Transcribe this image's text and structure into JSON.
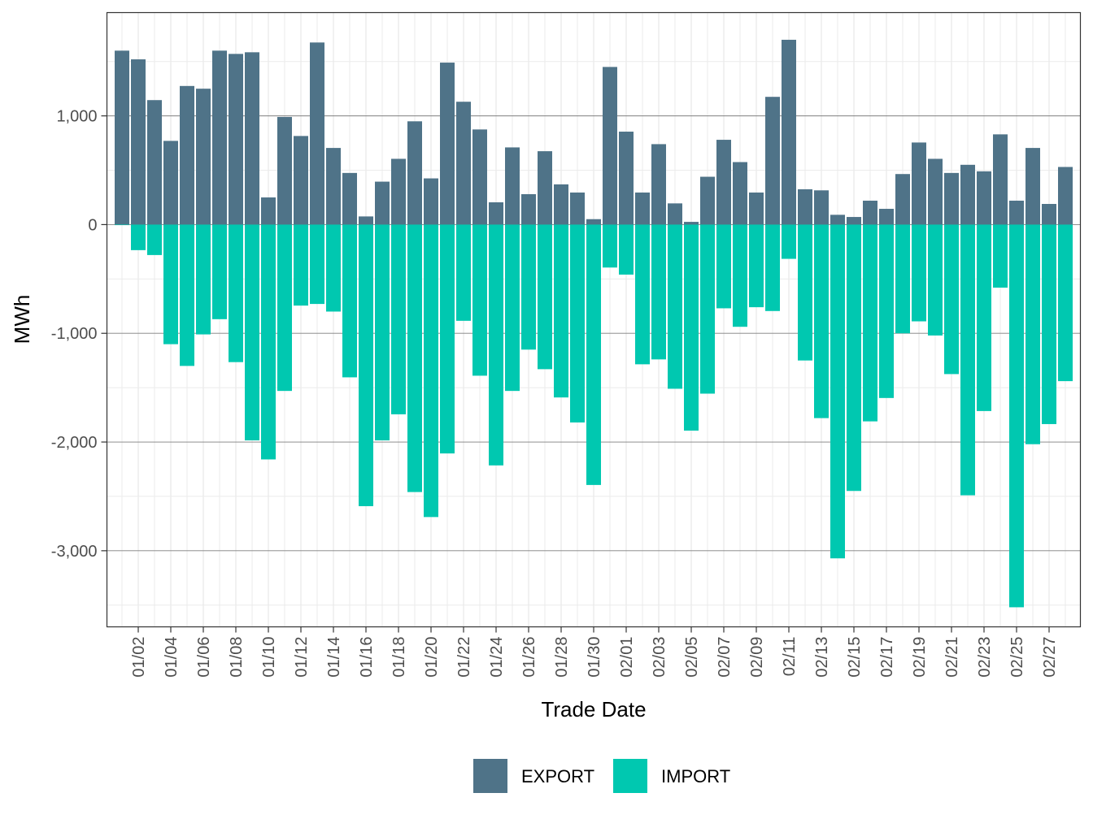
{
  "chart_data": {
    "type": "bar",
    "title": "",
    "xlabel": "Trade Date",
    "ylabel": "MWh",
    "ylim": [
      -3700,
      1950
    ],
    "y_ticks": [
      1000,
      0,
      -1000,
      -2000,
      -3000
    ],
    "y_tick_labels": [
      "1,000",
      "0",
      "-1,000",
      "-2,000",
      "-3,000"
    ],
    "x_tick_labels": [
      "01/02",
      "01/04",
      "01/06",
      "01/08",
      "01/10",
      "01/12",
      "01/14",
      "01/16",
      "01/18",
      "01/20",
      "01/22",
      "01/24",
      "01/26",
      "01/28",
      "01/30",
      "02/01",
      "02/03",
      "02/05",
      "02/07",
      "02/09",
      "02/11",
      "02/13",
      "02/15",
      "02/17",
      "02/19",
      "02/21",
      "02/23",
      "02/25",
      "02/27"
    ],
    "categories": [
      "01/01",
      "01/02",
      "01/03",
      "01/04",
      "01/05",
      "01/06",
      "01/07",
      "01/08",
      "01/09",
      "01/10",
      "01/11",
      "01/12",
      "01/13",
      "01/14",
      "01/15",
      "01/16",
      "01/17",
      "01/18",
      "01/19",
      "01/20",
      "01/21",
      "01/22",
      "01/23",
      "01/24",
      "01/25",
      "01/26",
      "01/27",
      "01/28",
      "01/29",
      "01/30",
      "01/31",
      "02/01",
      "02/02",
      "02/03",
      "02/04",
      "02/05",
      "02/06",
      "02/07",
      "02/08",
      "02/09",
      "02/10",
      "02/11",
      "02/12",
      "02/13",
      "02/14",
      "02/15",
      "02/16",
      "02/17",
      "02/18",
      "02/19",
      "02/20",
      "02/21",
      "02/22",
      "02/23",
      "02/24",
      "02/25",
      "02/26",
      "02/27",
      "02/28"
    ],
    "legend_position": "bottom",
    "series": [
      {
        "name": "EXPORT",
        "color": "#4f7388",
        "values": [
          1600,
          1520,
          1145,
          770,
          1275,
          1250,
          1600,
          1570,
          1585,
          250,
          990,
          815,
          1675,
          705,
          475,
          75,
          395,
          605,
          950,
          425,
          1490,
          1130,
          875,
          205,
          710,
          280,
          675,
          370,
          295,
          50,
          1450,
          855,
          295,
          740,
          195,
          25,
          440,
          780,
          575,
          295,
          1175,
          1700,
          325,
          315,
          90,
          70,
          220,
          145,
          465,
          755,
          605,
          475,
          550,
          490,
          830,
          220,
          705,
          190,
          530
        ]
      },
      {
        "name": "IMPORT",
        "color": "#00c8b0",
        "values": [
          -5,
          -235,
          -280,
          -1100,
          -1300,
          -1010,
          -870,
          -1265,
          -1985,
          -2160,
          -1530,
          -745,
          -730,
          -800,
          -1405,
          -2590,
          -1985,
          -1745,
          -2460,
          -2690,
          -2105,
          -885,
          -1390,
          -2215,
          -1530,
          -1150,
          -1330,
          -1590,
          -1820,
          -2395,
          -395,
          -460,
          -1285,
          -1240,
          -1510,
          -1895,
          -1555,
          -770,
          -940,
          -760,
          -795,
          -315,
          -1250,
          -1780,
          -3070,
          -2450,
          -1810,
          -1595,
          -1000,
          -890,
          -1020,
          -1375,
          -2490,
          -1715,
          -580,
          -3520,
          -2020,
          -1835,
          -1440
        ]
      }
    ]
  }
}
